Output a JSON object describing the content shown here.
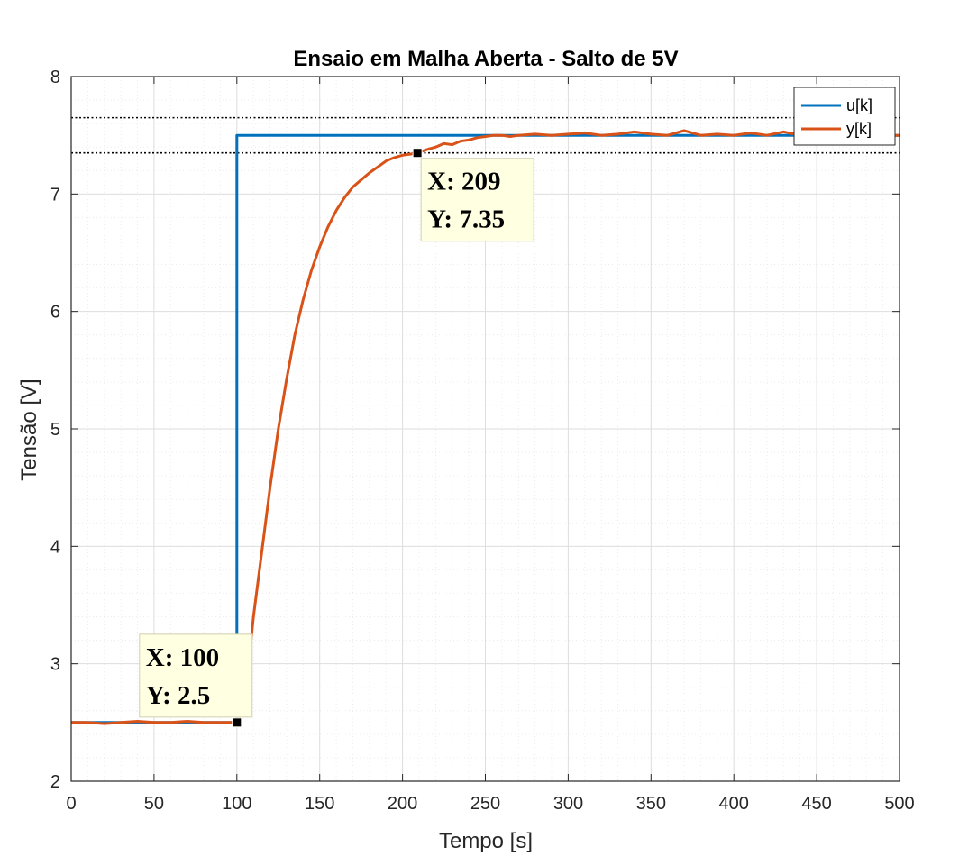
{
  "chart_data": {
    "type": "line",
    "title": "Ensaio em Malha Aberta - Salto de 5V",
    "xlabel": "Tempo [s]",
    "ylabel": "Tensão [V]",
    "xlim": [
      0,
      500
    ],
    "ylim": [
      2,
      8
    ],
    "xticks": [
      0,
      50,
      100,
      150,
      200,
      250,
      300,
      350,
      400,
      450,
      500
    ],
    "yticks": [
      2,
      3,
      4,
      5,
      6,
      7,
      8
    ],
    "xtick_labels": [
      "0",
      "50",
      "100",
      "150",
      "200",
      "250",
      "300",
      "350",
      "400",
      "450",
      "500"
    ],
    "ytick_labels": [
      "2",
      "3",
      "4",
      "5",
      "6",
      "7",
      "8"
    ],
    "grid": true,
    "minor_grid": true,
    "legend_position": "top-right",
    "reference_lines": [
      7.65,
      7.35
    ],
    "series": [
      {
        "name": "u[k]",
        "color": "#0072BD",
        "x": [
          0,
          100,
          100,
          500
        ],
        "y": [
          2.5,
          2.5,
          7.5,
          7.5
        ]
      },
      {
        "name": "y[k]",
        "color": "#D95319",
        "x": [
          0,
          10,
          20,
          30,
          40,
          50,
          60,
          70,
          80,
          90,
          100,
          102,
          104,
          106,
          108,
          110,
          115,
          120,
          125,
          130,
          135,
          140,
          145,
          150,
          155,
          160,
          165,
          170,
          175,
          180,
          185,
          190,
          195,
          200,
          205,
          209,
          215,
          220,
          225,
          230,
          235,
          240,
          245,
          250,
          255,
          260,
          265,
          270,
          280,
          290,
          300,
          310,
          320,
          330,
          340,
          350,
          360,
          370,
          380,
          390,
          400,
          410,
          420,
          430,
          440,
          450,
          460,
          470,
          480,
          490,
          500
        ],
        "y": [
          2.5,
          2.5,
          2.49,
          2.5,
          2.51,
          2.5,
          2.5,
          2.51,
          2.5,
          2.5,
          2.5,
          2.56,
          2.7,
          2.88,
          3.12,
          3.4,
          3.95,
          4.5,
          5.0,
          5.42,
          5.8,
          6.1,
          6.35,
          6.55,
          6.72,
          6.86,
          6.97,
          7.06,
          7.12,
          7.18,
          7.23,
          7.28,
          7.31,
          7.33,
          7.34,
          7.35,
          7.38,
          7.4,
          7.43,
          7.42,
          7.45,
          7.46,
          7.48,
          7.49,
          7.5,
          7.5,
          7.49,
          7.5,
          7.51,
          7.5,
          7.51,
          7.52,
          7.5,
          7.51,
          7.53,
          7.51,
          7.5,
          7.54,
          7.5,
          7.51,
          7.5,
          7.52,
          7.5,
          7.53,
          7.5,
          7.52,
          7.5,
          7.51,
          7.52,
          7.5,
          7.5
        ]
      }
    ],
    "datatips": [
      {
        "x": 100,
        "y": 2.5,
        "line1": "X: 100",
        "line2": "Y: 2.5",
        "placement": "above-left"
      },
      {
        "x": 209,
        "y": 7.35,
        "line1": "X: 209",
        "line2": "Y: 7.35",
        "placement": "below-right"
      }
    ]
  }
}
